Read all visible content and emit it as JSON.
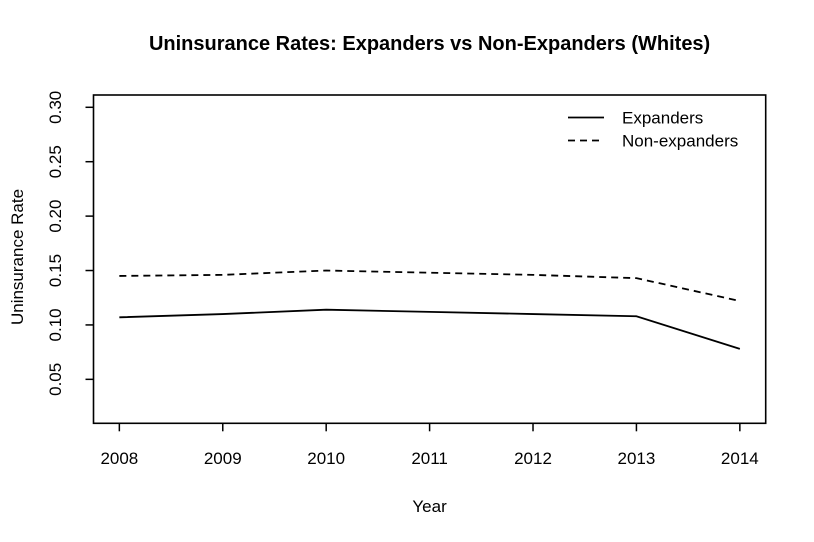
{
  "chart_data": {
    "type": "line",
    "title": "Uninsurance Rates: Expanders vs Non-Expanders (Whites)",
    "xlabel": "Year",
    "ylabel": "Uninsurance Rate",
    "x": [
      2008,
      2009,
      2010,
      2011,
      2012,
      2013,
      2014
    ],
    "xtick_labels": [
      "2008",
      "2009",
      "2010",
      "2011",
      "2012",
      "2013",
      "2014"
    ],
    "yticks": [
      0.05,
      0.1,
      0.15,
      0.2,
      0.25,
      0.3
    ],
    "ytick_labels": [
      "0.05",
      "0.10",
      "0.15",
      "0.20",
      "0.25",
      "0.30"
    ],
    "xlim": [
      2007.75,
      2014.25
    ],
    "ylim": [
      0.0096,
      0.3113
    ],
    "grid": false,
    "legend_position": "top-right",
    "series": [
      {
        "name": "Expanders",
        "line_style": "solid",
        "color": "#000000",
        "values": [
          0.107,
          0.11,
          0.114,
          0.112,
          0.11,
          0.108,
          0.078
        ]
      },
      {
        "name": "Non-expanders",
        "line_style": "dashed",
        "color": "#000000",
        "values": [
          0.145,
          0.146,
          0.15,
          0.148,
          0.146,
          0.143,
          0.122
        ]
      }
    ],
    "colors": {
      "foreground": "#000000",
      "background": "#ffffff"
    }
  }
}
